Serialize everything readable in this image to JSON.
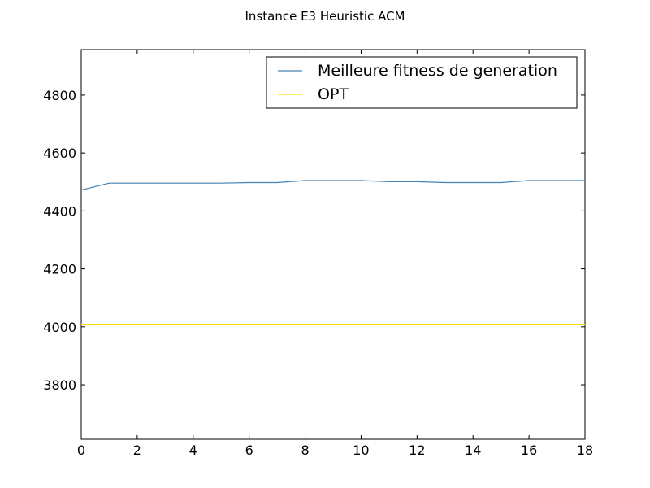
{
  "chart_data": {
    "type": "line",
    "title": "Instance E3 Heuristic ACM",
    "xlabel": "",
    "ylabel": "",
    "xlim": [
      0,
      18
    ],
    "ylim": [
      3612,
      4957
    ],
    "x_ticks": [
      "0",
      "2",
      "4",
      "6",
      "8",
      "10",
      "12",
      "14",
      "16",
      "18"
    ],
    "y_ticks": [
      "3800",
      "4000",
      "4200",
      "4400",
      "4600",
      "4800"
    ],
    "x_tick_values": [
      0,
      2,
      4,
      6,
      8,
      10,
      12,
      14,
      16,
      18
    ],
    "y_tick_values": [
      3800,
      4000,
      4200,
      4400,
      4600,
      4800
    ],
    "grid": false,
    "legend_position": "top-right",
    "series": [
      {
        "name": "Meilleure fitness de generation",
        "color": "#4682b4",
        "x": [
          0,
          1,
          2,
          3,
          4,
          5,
          6,
          7,
          8,
          9,
          10,
          11,
          12,
          13,
          14,
          15,
          16,
          17,
          18
        ],
        "values": [
          4472,
          4496,
          4496,
          4496,
          4496,
          4496,
          4498,
          4498,
          4505,
          4505,
          4505,
          4501,
          4501,
          4498,
          4498,
          4498,
          4505,
          4505,
          4505
        ]
      },
      {
        "name": "OPT",
        "color": "#ffdd00",
        "x": [
          0,
          18
        ],
        "values": [
          4009,
          4009
        ]
      }
    ]
  }
}
